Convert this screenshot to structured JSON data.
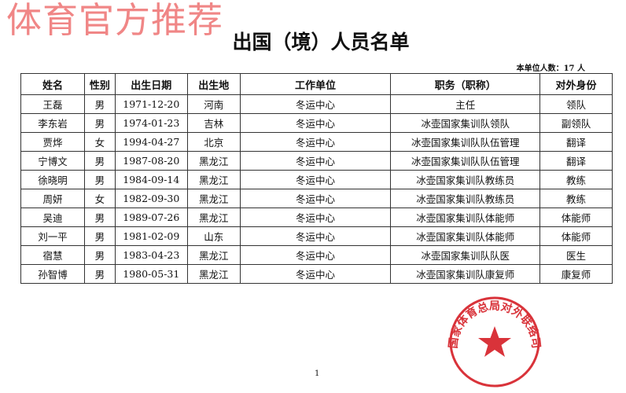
{
  "watermark": "体育官方推荐",
  "title": "出国（境）人员名单",
  "count_label": "本单位人数：17 人",
  "table": {
    "headers": [
      "姓名",
      "性别",
      "出生日期",
      "出生地",
      "工作单位",
      "职务（职称）",
      "对外身份"
    ],
    "rows": [
      [
        "王磊",
        "男",
        "1971-12-20",
        "河南",
        "冬运中心",
        "主任",
        "领队"
      ],
      [
        "李东岩",
        "男",
        "1974-01-23",
        "吉林",
        "冬运中心",
        "冰壶国家集训队领队",
        "副领队"
      ],
      [
        "贾烨",
        "女",
        "1994-04-27",
        "北京",
        "冬运中心",
        "冰壶国家集训队队伍管理",
        "翻译"
      ],
      [
        "宁博文",
        "男",
        "1987-08-20",
        "黑龙江",
        "冬运中心",
        "冰壶国家集训队队伍管理",
        "翻译"
      ],
      [
        "徐晓明",
        "男",
        "1984-09-14",
        "黑龙江",
        "冬运中心",
        "冰壶国家集训队教练员",
        "教练"
      ],
      [
        "周妍",
        "女",
        "1982-09-30",
        "黑龙江",
        "冬运中心",
        "冰壶国家集训队教练员",
        "教练"
      ],
      [
        "吴迪",
        "男",
        "1989-07-26",
        "黑龙江",
        "冬运中心",
        "冰壶国家集训队体能师",
        "体能师"
      ],
      [
        "刘一平",
        "男",
        "1981-02-09",
        "山东",
        "冬运中心",
        "冰壶国家集训队体能师",
        "体能师"
      ],
      [
        "宿慧",
        "男",
        "1983-04-23",
        "黑龙江",
        "冬运中心",
        "冰壶国家集训队队医",
        "医生"
      ],
      [
        "孙智博",
        "男",
        "1980-05-31",
        "黑龙江",
        "冬运中心",
        "冰壶国家集训队康复师",
        "康复师"
      ]
    ]
  },
  "page_number": "1",
  "stamp": {
    "text": "国家体育总局对外联络司",
    "color": "#d9333a",
    "icon": "star-icon"
  }
}
